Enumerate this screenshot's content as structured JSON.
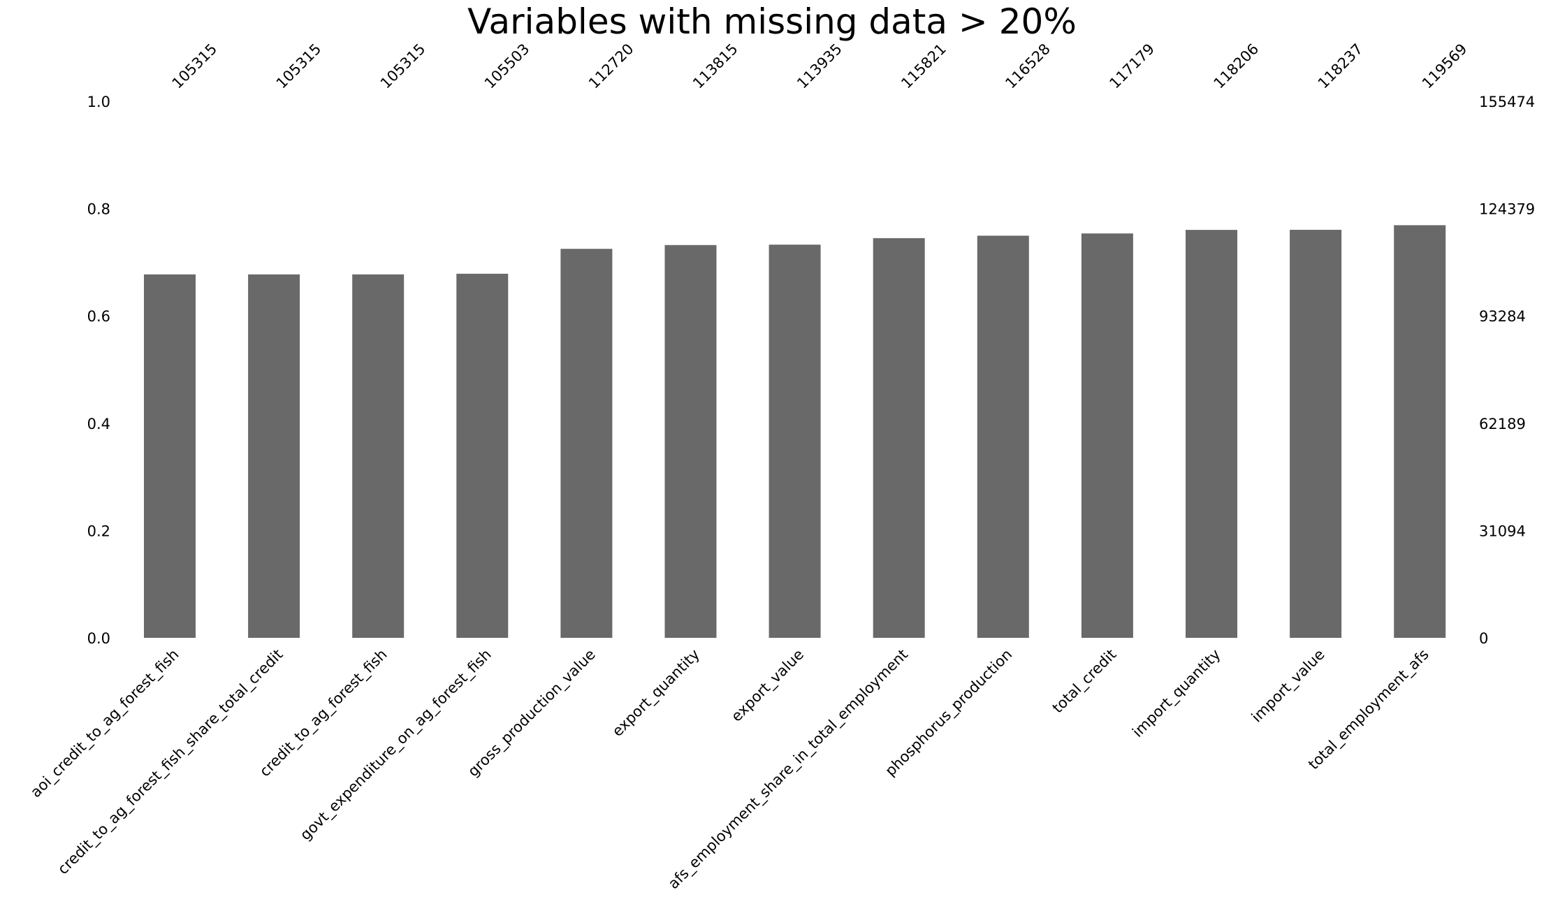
{
  "chart_data": {
    "type": "bar",
    "title": "Variables with missing data > 20%",
    "xlabel": "",
    "ylabel": "",
    "ylim": [
      0,
      1
    ],
    "y_ticks": [
      "0.0",
      "0.2",
      "0.4",
      "0.6",
      "0.8",
      "1.0"
    ],
    "right_ticks": [
      "0",
      "31094",
      "62189",
      "93284",
      "124379",
      "155474"
    ],
    "total_rows": 155474,
    "bar_color": "#696969",
    "grid": false,
    "categories": [
      "aoi_credit_to_ag_forest_fish",
      "credit_to_ag_forest_fish_share_total_credit",
      "credit_to_ag_forest_fish",
      "govt_expenditure_on_ag_forest_fish",
      "gross_production_value",
      "export_quantity",
      "export_value",
      "afs_employment_share_in_total_employment",
      "phosphorus_production",
      "total_credit",
      "import_quantity",
      "import_value",
      "total_employment_afs"
    ],
    "counts": [
      "105315",
      "105315",
      "105315",
      "105503",
      "112720",
      "113815",
      "113935",
      "115821",
      "116528",
      "117179",
      "118206",
      "118237",
      "119569"
    ]
  }
}
